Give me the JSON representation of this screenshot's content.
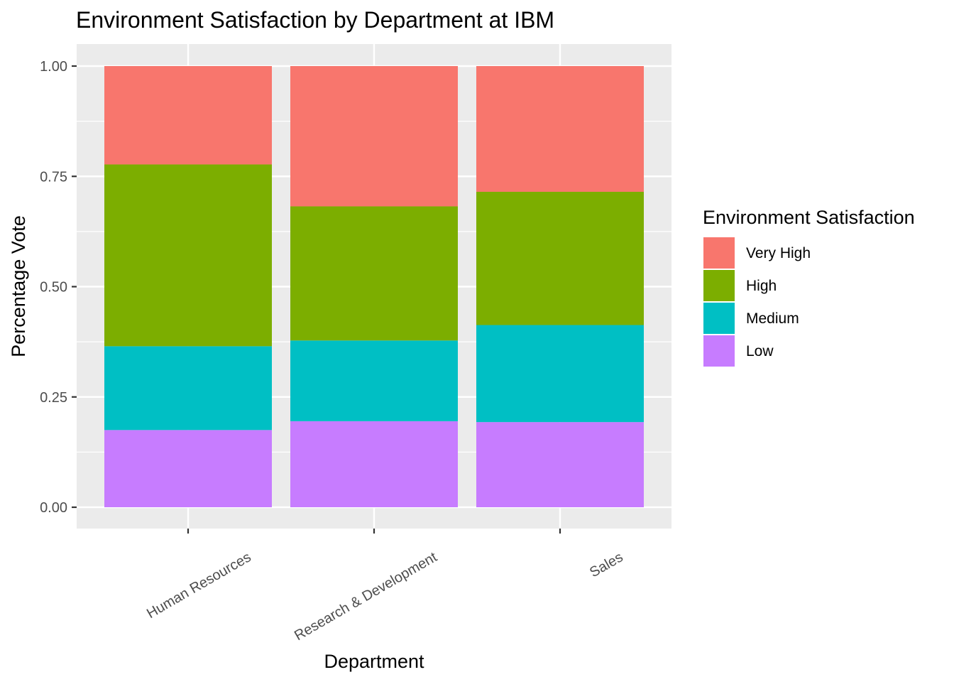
{
  "chart_data": {
    "type": "bar",
    "stacked": true,
    "title": "Environment Satisfaction by Department at IBM",
    "xlabel": "Department",
    "ylabel": "Percentage Vote",
    "ylim": [
      0,
      1
    ],
    "yticks": [
      "0.00",
      "0.25",
      "0.50",
      "0.75",
      "1.00"
    ],
    "categories": [
      "Human Resources",
      "Research & Development",
      "Sales"
    ],
    "grid": true,
    "legend": {
      "title": "Environment Satisfaction",
      "position": "right",
      "order": [
        "Very High",
        "High",
        "Medium",
        "Low"
      ]
    },
    "series": [
      {
        "name": "Low",
        "color": "#C77CFF",
        "values": [
          0.175,
          0.195,
          0.193
        ]
      },
      {
        "name": "Medium",
        "color": "#00BFC4",
        "values": [
          0.19,
          0.183,
          0.22
        ]
      },
      {
        "name": "High",
        "color": "#7CAE00",
        "values": [
          0.412,
          0.304,
          0.302
        ]
      },
      {
        "name": "Very High",
        "color": "#F8766D",
        "values": [
          0.223,
          0.318,
          0.285
        ]
      }
    ]
  }
}
